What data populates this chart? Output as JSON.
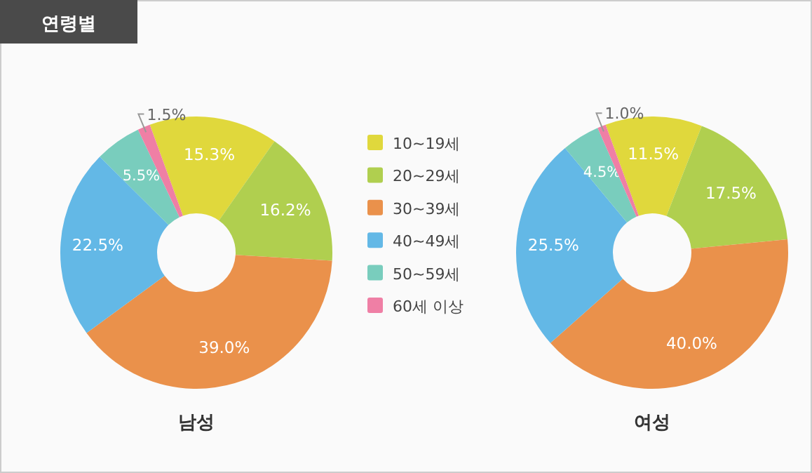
{
  "chart_data": [
    {
      "type": "donut",
      "title": "남성",
      "annotations": [
        "연령별"
      ],
      "categories": [
        "10~19세",
        "20~29세",
        "30~39세",
        "40~49세",
        "50~59세",
        "60세 이상"
      ],
      "values": [
        15.3,
        16.2,
        39.0,
        22.5,
        5.5,
        1.5
      ],
      "value_labels": [
        "15.3%",
        "16.2%",
        "39.0%",
        "22.5%",
        "5.5%",
        "1.5%"
      ],
      "colors": [
        "#e0d83c",
        "#b0cf4f",
        "#ea914b",
        "#63b8e6",
        "#79cdbd",
        "#ef7fa5"
      ],
      "legend": "right"
    },
    {
      "type": "donut",
      "title": "여성",
      "values": [
        11.5,
        17.5,
        40.0,
        25.5,
        4.5,
        1.0
      ],
      "value_labels": [
        "11.5%",
        "17.5%",
        "40.0%",
        "25.5%",
        "4.5%",
        "1.0%"
      ],
      "colors": [
        "#e0d83c",
        "#b0cf4f",
        "#ea914b",
        "#63b8e6",
        "#79cdbd",
        "#ef7fa5"
      ]
    }
  ]
}
